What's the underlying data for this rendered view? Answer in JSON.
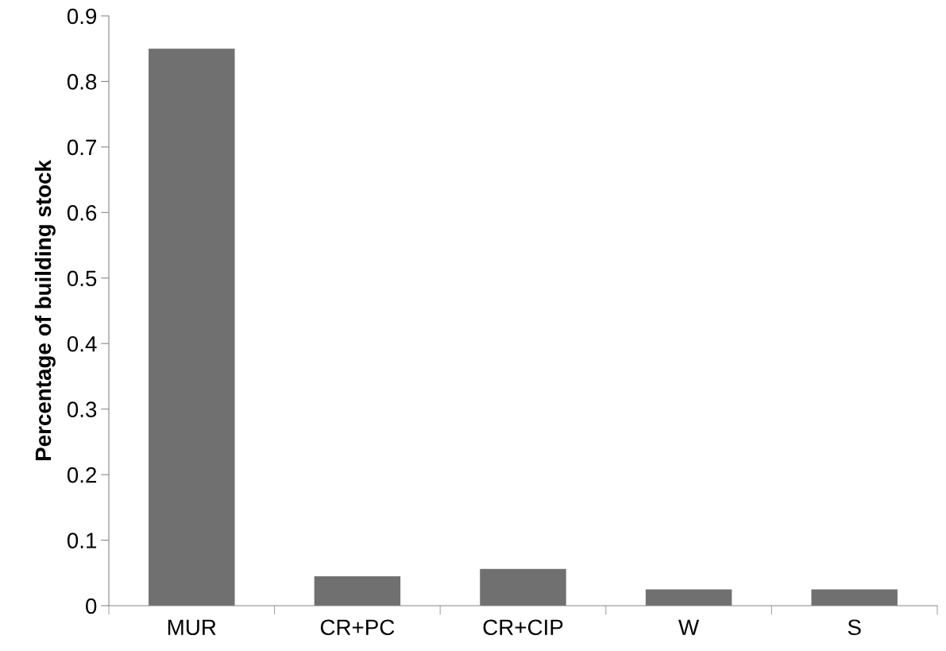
{
  "chart_data": {
    "type": "bar",
    "ylabel": "Percentage of building stock",
    "categories": [
      "MUR",
      "CR+PC",
      "CR+CIP",
      "W",
      "S"
    ],
    "values": [
      0.85,
      0.045,
      0.056,
      0.025,
      0.025
    ],
    "color": "#707070",
    "ylim": [
      0,
      0.9
    ],
    "yticks": [
      0,
      0.1,
      0.2,
      0.3,
      0.4,
      0.5,
      0.6,
      0.7,
      0.8,
      0.9
    ],
    "grid": false,
    "legend": false
  }
}
